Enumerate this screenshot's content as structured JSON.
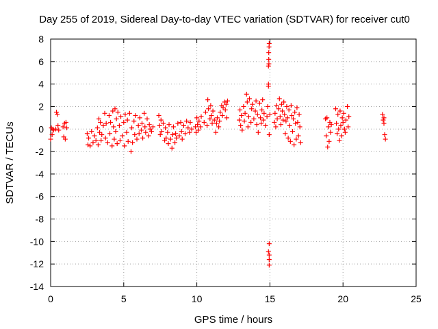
{
  "chart_data": {
    "type": "scatter",
    "title": "Day 255 of 2019, Sidereal Day-to-day VTEC variation (SDTVAR) for receiver cut0",
    "xlabel": "GPS time / hours",
    "ylabel": "SDTVAR / TECUs",
    "xlim": [
      0,
      25
    ],
    "ylim": [
      -14,
      8
    ],
    "xticks": [
      0,
      5,
      10,
      15,
      20,
      25
    ],
    "yticks": [
      -14,
      -12,
      -10,
      -8,
      -6,
      -4,
      -2,
      0,
      2,
      4,
      6,
      8
    ],
    "grid": true,
    "marker": "+",
    "color": "#ff0000",
    "series": [
      {
        "name": "SDTVAR",
        "points": [
          [
            0.0,
            -0.9
          ],
          [
            0.05,
            0.1
          ],
          [
            0.1,
            -0.5
          ],
          [
            0.15,
            0.0
          ],
          [
            0.2,
            -0.1
          ],
          [
            0.35,
            0.0
          ],
          [
            0.4,
            1.5
          ],
          [
            0.45,
            1.3
          ],
          [
            0.5,
            0.3
          ],
          [
            0.55,
            -0.1
          ],
          [
            0.85,
            0.2
          ],
          [
            0.9,
            -0.7
          ],
          [
            0.95,
            0.5
          ],
          [
            1.0,
            -0.9
          ],
          [
            1.05,
            0.6
          ],
          [
            1.1,
            0.1
          ],
          [
            2.5,
            -0.4
          ],
          [
            2.55,
            -1.4
          ],
          [
            2.6,
            -0.8
          ],
          [
            2.7,
            -1.5
          ],
          [
            2.8,
            -0.2
          ],
          [
            2.9,
            -1.2
          ],
          [
            3.0,
            -0.6
          ],
          [
            3.1,
            -1.0
          ],
          [
            3.2,
            0.1
          ],
          [
            3.25,
            -1.4
          ],
          [
            3.3,
            0.9
          ],
          [
            3.35,
            -0.3
          ],
          [
            3.4,
            0.6
          ],
          [
            3.45,
            -1.0
          ],
          [
            3.5,
            -0.5
          ],
          [
            3.6,
            0.3
          ],
          [
            3.7,
            1.4
          ],
          [
            3.75,
            -0.8
          ],
          [
            3.8,
            0.5
          ],
          [
            3.9,
            -1.2
          ],
          [
            4.0,
            1.2
          ],
          [
            4.05,
            -0.4
          ],
          [
            4.1,
            0.6
          ],
          [
            4.2,
            -1.5
          ],
          [
            4.25,
            1.6
          ],
          [
            4.3,
            0.2
          ],
          [
            4.35,
            -0.9
          ],
          [
            4.4,
            1.8
          ],
          [
            4.45,
            -0.2
          ],
          [
            4.5,
            0.9
          ],
          [
            4.55,
            -1.3
          ],
          [
            4.6,
            1.5
          ],
          [
            4.7,
            0.3
          ],
          [
            4.75,
            -1.0
          ],
          [
            4.8,
            1.1
          ],
          [
            4.9,
            -0.6
          ],
          [
            5.0,
            0.6
          ],
          [
            5.05,
            -1.5
          ],
          [
            5.1,
            1.3
          ],
          [
            5.2,
            -0.3
          ],
          [
            5.25,
            0.8
          ],
          [
            5.3,
            -1.1
          ],
          [
            5.4,
            1.4
          ],
          [
            5.5,
            -2.0
          ],
          [
            5.55,
            0.1
          ],
          [
            5.6,
            -1.2
          ],
          [
            5.7,
            0.7
          ],
          [
            5.75,
            -0.5
          ],
          [
            5.8,
            1.2
          ],
          [
            5.9,
            -0.9
          ],
          [
            6.0,
            0.3
          ],
          [
            6.05,
            -0.4
          ],
          [
            6.1,
            1.0
          ],
          [
            6.2,
            -0.1
          ],
          [
            6.25,
            0.5
          ],
          [
            6.3,
            -0.8
          ],
          [
            6.4,
            1.4
          ],
          [
            6.45,
            0.2
          ],
          [
            6.5,
            -0.3
          ],
          [
            6.6,
            0.9
          ],
          [
            6.7,
            -0.6
          ],
          [
            6.75,
            0.4
          ],
          [
            6.8,
            0.0
          ],
          [
            6.9,
            -0.2
          ],
          [
            7.0,
            0.2
          ],
          [
            7.4,
            1.2
          ],
          [
            7.45,
            0.3
          ],
          [
            7.5,
            -0.5
          ],
          [
            7.55,
            0.8
          ],
          [
            7.6,
            -0.2
          ],
          [
            7.7,
            0.5
          ],
          [
            7.8,
            -1.0
          ],
          [
            7.85,
            0.1
          ],
          [
            7.9,
            -0.8
          ],
          [
            8.0,
            -0.3
          ],
          [
            8.05,
            -1.3
          ],
          [
            8.1,
            0.4
          ],
          [
            8.2,
            -0.9
          ],
          [
            8.3,
            -1.7
          ],
          [
            8.35,
            -0.5
          ],
          [
            8.4,
            0.2
          ],
          [
            8.5,
            -1.2
          ],
          [
            8.55,
            -0.4
          ],
          [
            8.6,
            -0.8
          ],
          [
            8.7,
            0.5
          ],
          [
            8.8,
            -0.6
          ],
          [
            8.9,
            0.6
          ],
          [
            8.95,
            -0.2
          ],
          [
            9.0,
            -0.9
          ],
          [
            9.1,
            0.3
          ],
          [
            9.2,
            -0.4
          ],
          [
            9.3,
            0.7
          ],
          [
            9.4,
            0.1
          ],
          [
            9.5,
            -0.3
          ],
          [
            9.55,
            0.6
          ],
          [
            9.65,
            0.0
          ],
          [
            9.9,
            0.2
          ],
          [
            9.95,
            -0.3
          ],
          [
            10.0,
            1.0
          ],
          [
            10.05,
            0.4
          ],
          [
            10.1,
            -0.1
          ],
          [
            10.15,
            0.7
          ],
          [
            10.25,
            0.2
          ],
          [
            10.3,
            1.1
          ],
          [
            10.5,
            0.6
          ],
          [
            10.6,
            1.5
          ],
          [
            10.7,
            0.3
          ],
          [
            10.75,
            2.6
          ],
          [
            10.8,
            1.8
          ],
          [
            10.9,
            0.9
          ],
          [
            10.95,
            2.1
          ],
          [
            11.0,
            1.2
          ],
          [
            11.05,
            0.5
          ],
          [
            11.1,
            1.6
          ],
          [
            11.2,
            0.8
          ],
          [
            11.3,
            -0.3
          ],
          [
            11.35,
            0.5
          ],
          [
            11.4,
            1.0
          ],
          [
            11.5,
            0.2
          ],
          [
            11.55,
            0.7
          ],
          [
            11.6,
            1.5
          ],
          [
            11.7,
            2.1
          ],
          [
            11.75,
            1.2
          ],
          [
            11.8,
            1.9
          ],
          [
            11.9,
            2.4
          ],
          [
            11.95,
            1.7
          ],
          [
            12.0,
            2.2
          ],
          [
            12.05,
            1.0
          ],
          [
            12.1,
            2.5
          ],
          [
            12.9,
            0.8
          ],
          [
            12.95,
            1.7
          ],
          [
            13.0,
            0.3
          ],
          [
            13.05,
            1.2
          ],
          [
            13.1,
            -0.1
          ],
          [
            13.2,
            2.0
          ],
          [
            13.25,
            0.7
          ],
          [
            13.3,
            1.4
          ],
          [
            13.4,
            3.1
          ],
          [
            13.45,
            2.4
          ],
          [
            13.5,
            0.2
          ],
          [
            13.55,
            1.1
          ],
          [
            13.6,
            2.7
          ],
          [
            13.7,
            0.6
          ],
          [
            13.75,
            1.8
          ],
          [
            13.8,
            2.2
          ],
          [
            13.9,
            0.9
          ],
          [
            14.0,
            1.6
          ],
          [
            14.05,
            2.5
          ],
          [
            14.1,
            0.4
          ],
          [
            14.15,
            1.3
          ],
          [
            14.2,
            -0.3
          ],
          [
            14.3,
            2.3
          ],
          [
            14.35,
            1.0
          ],
          [
            14.4,
            0.5
          ],
          [
            14.45,
            1.7
          ],
          [
            14.5,
            2.6
          ],
          [
            14.55,
            0.8
          ],
          [
            14.6,
            1.4
          ],
          [
            14.7,
            0.3
          ],
          [
            14.8,
            1.1
          ],
          [
            14.85,
            2.0
          ],
          [
            14.9,
            3.8
          ],
          [
            14.95,
            -0.5
          ],
          [
            15.0,
            1.3
          ],
          [
            14.9,
            4.0
          ],
          [
            14.9,
            5.6
          ],
          [
            14.92,
            6.2
          ],
          [
            14.92,
            6.8
          ],
          [
            14.94,
            7.3
          ],
          [
            14.95,
            7.6
          ],
          [
            14.93,
            5.8
          ],
          [
            14.95,
            -10.2
          ],
          [
            14.95,
            -11.2
          ],
          [
            14.95,
            -11.6
          ],
          [
            14.95,
            -12.1
          ],
          [
            14.9,
            -10.9
          ],
          [
            15.3,
            0.6
          ],
          [
            15.35,
            1.4
          ],
          [
            15.4,
            0.2
          ],
          [
            15.45,
            2.1
          ],
          [
            15.5,
            0.9
          ],
          [
            15.6,
            1.8
          ],
          [
            15.65,
            2.7
          ],
          [
            15.7,
            1.1
          ],
          [
            15.75,
            0.4
          ],
          [
            15.8,
            2.2
          ],
          [
            15.85,
            1.6
          ],
          [
            15.9,
            0.8
          ],
          [
            15.95,
            2.4
          ],
          [
            16.0,
            1.3
          ],
          [
            16.05,
            -0.4
          ],
          [
            16.1,
            0.7
          ],
          [
            16.15,
            2.0
          ],
          [
            16.2,
            1.0
          ],
          [
            16.25,
            -0.8
          ],
          [
            16.3,
            1.7
          ],
          [
            16.35,
            0.3
          ],
          [
            16.4,
            -1.1
          ],
          [
            16.45,
            2.1
          ],
          [
            16.5,
            1.2
          ],
          [
            16.55,
            -0.2
          ],
          [
            16.6,
            0.9
          ],
          [
            16.65,
            -1.4
          ],
          [
            16.7,
            1.5
          ],
          [
            16.75,
            0.5
          ],
          [
            16.8,
            -0.9
          ],
          [
            16.85,
            1.9
          ],
          [
            16.9,
            0.6
          ],
          [
            16.95,
            -0.6
          ],
          [
            17.0,
            1.3
          ],
          [
            17.05,
            0.2
          ],
          [
            17.1,
            -1.2
          ],
          [
            18.8,
            0.9
          ],
          [
            18.85,
            -0.6
          ],
          [
            18.9,
            1.0
          ],
          [
            18.95,
            -1.6
          ],
          [
            19.0,
            0.2
          ],
          [
            19.05,
            -1.1
          ],
          [
            19.1,
            0.6
          ],
          [
            19.15,
            -0.3
          ],
          [
            19.2,
            0.4
          ],
          [
            19.5,
            1.8
          ],
          [
            19.55,
            0.5
          ],
          [
            19.6,
            -0.4
          ],
          [
            19.65,
            1.3
          ],
          [
            19.7,
            0.0
          ],
          [
            19.75,
            -1.0
          ],
          [
            19.8,
            1.6
          ],
          [
            19.85,
            0.3
          ],
          [
            19.9,
            -0.6
          ],
          [
            19.95,
            1.0
          ],
          [
            20.0,
            0.6
          ],
          [
            20.05,
            1.4
          ],
          [
            20.1,
            0.0
          ],
          [
            20.15,
            -0.3
          ],
          [
            20.2,
            0.8
          ],
          [
            20.3,
            2.0
          ],
          [
            20.35,
            0.2
          ],
          [
            20.4,
            1.1
          ],
          [
            22.7,
            1.3
          ],
          [
            22.75,
            0.8
          ],
          [
            22.8,
            0.5
          ],
          [
            22.85,
            -0.5
          ],
          [
            22.9,
            -0.9
          ],
          [
            22.8,
            1.0
          ]
        ]
      }
    ]
  }
}
